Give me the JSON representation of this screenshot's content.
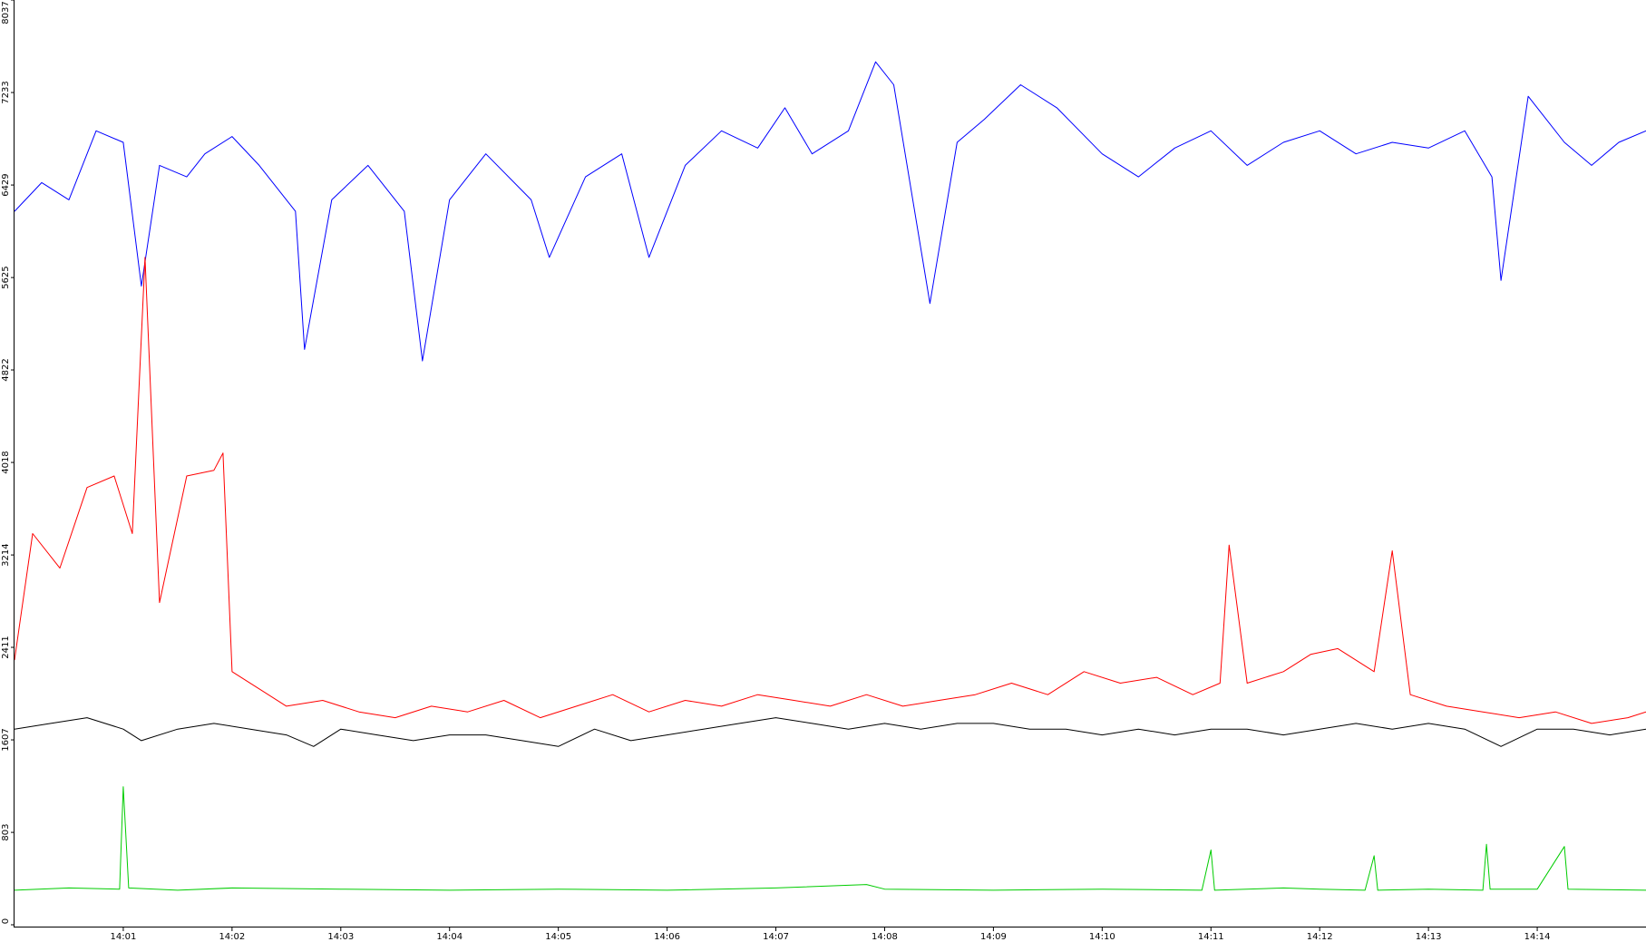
{
  "chart_data": {
    "type": "line",
    "title": "",
    "xlabel": "",
    "ylabel": "",
    "ylim": [
      0,
      8037
    ],
    "y_ticks": [
      0,
      803,
      1607,
      2411,
      3214,
      4018,
      4822,
      5625,
      6429,
      7233,
      8037
    ],
    "x_range": [
      "14:00:00",
      "14:15:00"
    ],
    "x_ticks": [
      "14:01",
      "14:02",
      "14:03",
      "14:04",
      "14:05",
      "14:06",
      "14:07",
      "14:08",
      "14:09",
      "14:10",
      "14:11",
      "14:12",
      "14:13",
      "14:14"
    ],
    "grid": false,
    "legend": "none",
    "series": [
      {
        "color": "#0000ff",
        "points": [
          [
            "14:00:00",
            6200
          ],
          [
            "14:00:15",
            6450
          ],
          [
            "14:00:30",
            6300
          ],
          [
            "14:00:45",
            6900
          ],
          [
            "14:01:00",
            6800
          ],
          [
            "14:01:10",
            5550
          ],
          [
            "14:01:20",
            6600
          ],
          [
            "14:01:35",
            6500
          ],
          [
            "14:01:45",
            6700
          ],
          [
            "14:02:00",
            6850
          ],
          [
            "14:02:15",
            6600
          ],
          [
            "14:02:35",
            6200
          ],
          [
            "14:02:40",
            5000
          ],
          [
            "14:02:55",
            6300
          ],
          [
            "14:03:15",
            6600
          ],
          [
            "14:03:35",
            6200
          ],
          [
            "14:03:45",
            4900
          ],
          [
            "14:04:00",
            6300
          ],
          [
            "14:04:20",
            6700
          ],
          [
            "14:04:45",
            6300
          ],
          [
            "14:04:55",
            5800
          ],
          [
            "14:05:15",
            6500
          ],
          [
            "14:05:35",
            6700
          ],
          [
            "14:05:50",
            5800
          ],
          [
            "14:06:10",
            6600
          ],
          [
            "14:06:30",
            6900
          ],
          [
            "14:06:50",
            6750
          ],
          [
            "14:07:05",
            7100
          ],
          [
            "14:07:20",
            6700
          ],
          [
            "14:07:40",
            6900
          ],
          [
            "14:07:55",
            7500
          ],
          [
            "14:08:05",
            7300
          ],
          [
            "14:08:25",
            5400
          ],
          [
            "14:08:40",
            6800
          ],
          [
            "14:08:55",
            7000
          ],
          [
            "14:09:15",
            7300
          ],
          [
            "14:09:35",
            7100
          ],
          [
            "14:10:00",
            6700
          ],
          [
            "14:10:20",
            6500
          ],
          [
            "14:10:40",
            6750
          ],
          [
            "14:11:00",
            6900
          ],
          [
            "14:11:20",
            6600
          ],
          [
            "14:11:40",
            6800
          ],
          [
            "14:12:00",
            6900
          ],
          [
            "14:12:20",
            6700
          ],
          [
            "14:12:40",
            6800
          ],
          [
            "14:13:00",
            6750
          ],
          [
            "14:13:20",
            6900
          ],
          [
            "14:13:35",
            6500
          ],
          [
            "14:13:40",
            5600
          ],
          [
            "14:13:55",
            7200
          ],
          [
            "14:14:15",
            6800
          ],
          [
            "14:14:30",
            6600
          ],
          [
            "14:14:45",
            6800
          ],
          [
            "14:15:00",
            6900
          ]
        ]
      },
      {
        "color": "#ff0000",
        "points": [
          [
            "14:00:00",
            2300
          ],
          [
            "14:00:10",
            3400
          ],
          [
            "14:00:25",
            3100
          ],
          [
            "14:00:40",
            3800
          ],
          [
            "14:00:55",
            3900
          ],
          [
            "14:01:05",
            3400
          ],
          [
            "14:01:12",
            5800
          ],
          [
            "14:01:20",
            2800
          ],
          [
            "14:01:35",
            3900
          ],
          [
            "14:01:50",
            3950
          ],
          [
            "14:01:55",
            4100
          ],
          [
            "14:02:00",
            2200
          ],
          [
            "14:02:15",
            2050
          ],
          [
            "14:02:30",
            1900
          ],
          [
            "14:02:50",
            1950
          ],
          [
            "14:03:10",
            1850
          ],
          [
            "14:03:30",
            1800
          ],
          [
            "14:03:50",
            1900
          ],
          [
            "14:04:10",
            1850
          ],
          [
            "14:04:30",
            1950
          ],
          [
            "14:04:50",
            1800
          ],
          [
            "14:05:10",
            1900
          ],
          [
            "14:05:30",
            2000
          ],
          [
            "14:05:50",
            1850
          ],
          [
            "14:06:10",
            1950
          ],
          [
            "14:06:30",
            1900
          ],
          [
            "14:06:50",
            2000
          ],
          [
            "14:07:10",
            1950
          ],
          [
            "14:07:30",
            1900
          ],
          [
            "14:07:50",
            2000
          ],
          [
            "14:08:10",
            1900
          ],
          [
            "14:08:30",
            1950
          ],
          [
            "14:08:50",
            2000
          ],
          [
            "14:09:10",
            2100
          ],
          [
            "14:09:30",
            2000
          ],
          [
            "14:09:50",
            2200
          ],
          [
            "14:10:10",
            2100
          ],
          [
            "14:10:30",
            2150
          ],
          [
            "14:10:50",
            2000
          ],
          [
            "14:11:05",
            2100
          ],
          [
            "14:11:10",
            3300
          ],
          [
            "14:11:20",
            2100
          ],
          [
            "14:11:40",
            2200
          ],
          [
            "14:11:55",
            2350
          ],
          [
            "14:12:10",
            2400
          ],
          [
            "14:12:30",
            2200
          ],
          [
            "14:12:40",
            3250
          ],
          [
            "14:12:50",
            2000
          ],
          [
            "14:13:10",
            1900
          ],
          [
            "14:13:30",
            1850
          ],
          [
            "14:13:50",
            1800
          ],
          [
            "14:14:10",
            1850
          ],
          [
            "14:14:30",
            1750
          ],
          [
            "14:14:50",
            1800
          ],
          [
            "14:15:00",
            1850
          ]
        ]
      },
      {
        "color": "#000000",
        "points": [
          [
            "14:00:00",
            1700
          ],
          [
            "14:00:20",
            1750
          ],
          [
            "14:00:40",
            1800
          ],
          [
            "14:01:00",
            1700
          ],
          [
            "14:01:10",
            1600
          ],
          [
            "14:01:30",
            1700
          ],
          [
            "14:01:50",
            1750
          ],
          [
            "14:02:10",
            1700
          ],
          [
            "14:02:30",
            1650
          ],
          [
            "14:02:45",
            1550
          ],
          [
            "14:03:00",
            1700
          ],
          [
            "14:03:20",
            1650
          ],
          [
            "14:03:40",
            1600
          ],
          [
            "14:04:00",
            1650
          ],
          [
            "14:04:20",
            1650
          ],
          [
            "14:04:40",
            1600
          ],
          [
            "14:05:00",
            1550
          ],
          [
            "14:05:20",
            1700
          ],
          [
            "14:05:40",
            1600
          ],
          [
            "14:06:00",
            1650
          ],
          [
            "14:06:20",
            1700
          ],
          [
            "14:06:40",
            1750
          ],
          [
            "14:07:00",
            1800
          ],
          [
            "14:07:20",
            1750
          ],
          [
            "14:07:40",
            1700
          ],
          [
            "14:08:00",
            1750
          ],
          [
            "14:08:20",
            1700
          ],
          [
            "14:08:40",
            1750
          ],
          [
            "14:09:00",
            1750
          ],
          [
            "14:09:20",
            1700
          ],
          [
            "14:09:40",
            1700
          ],
          [
            "14:10:00",
            1650
          ],
          [
            "14:10:20",
            1700
          ],
          [
            "14:10:40",
            1650
          ],
          [
            "14:11:00",
            1700
          ],
          [
            "14:11:20",
            1700
          ],
          [
            "14:11:40",
            1650
          ],
          [
            "14:12:00",
            1700
          ],
          [
            "14:12:20",
            1750
          ],
          [
            "14:12:40",
            1700
          ],
          [
            "14:13:00",
            1750
          ],
          [
            "14:13:20",
            1700
          ],
          [
            "14:13:40",
            1550
          ],
          [
            "14:14:00",
            1700
          ],
          [
            "14:14:20",
            1700
          ],
          [
            "14:14:40",
            1650
          ],
          [
            "14:15:00",
            1700
          ]
        ]
      },
      {
        "color": "#00cc00",
        "points": [
          [
            "14:00:00",
            300
          ],
          [
            "14:00:30",
            320
          ],
          [
            "14:00:58",
            310
          ],
          [
            "14:01:00",
            1200
          ],
          [
            "14:01:03",
            320
          ],
          [
            "14:01:30",
            300
          ],
          [
            "14:02:00",
            320
          ],
          [
            "14:03:00",
            310
          ],
          [
            "14:04:00",
            300
          ],
          [
            "14:05:00",
            310
          ],
          [
            "14:06:00",
            300
          ],
          [
            "14:07:00",
            320
          ],
          [
            "14:07:50",
            350
          ],
          [
            "14:08:00",
            310
          ],
          [
            "14:09:00",
            300
          ],
          [
            "14:10:00",
            310
          ],
          [
            "14:10:55",
            300
          ],
          [
            "14:11:00",
            650
          ],
          [
            "14:11:02",
            300
          ],
          [
            "14:11:40",
            320
          ],
          [
            "14:12:00",
            310
          ],
          [
            "14:12:25",
            300
          ],
          [
            "14:12:30",
            600
          ],
          [
            "14:12:32",
            300
          ],
          [
            "14:13:00",
            310
          ],
          [
            "14:13:30",
            300
          ],
          [
            "14:13:32",
            700
          ],
          [
            "14:13:34",
            310
          ],
          [
            "14:14:00",
            310
          ],
          [
            "14:14:15",
            680
          ],
          [
            "14:14:17",
            310
          ],
          [
            "14:15:00",
            300
          ]
        ]
      }
    ]
  }
}
